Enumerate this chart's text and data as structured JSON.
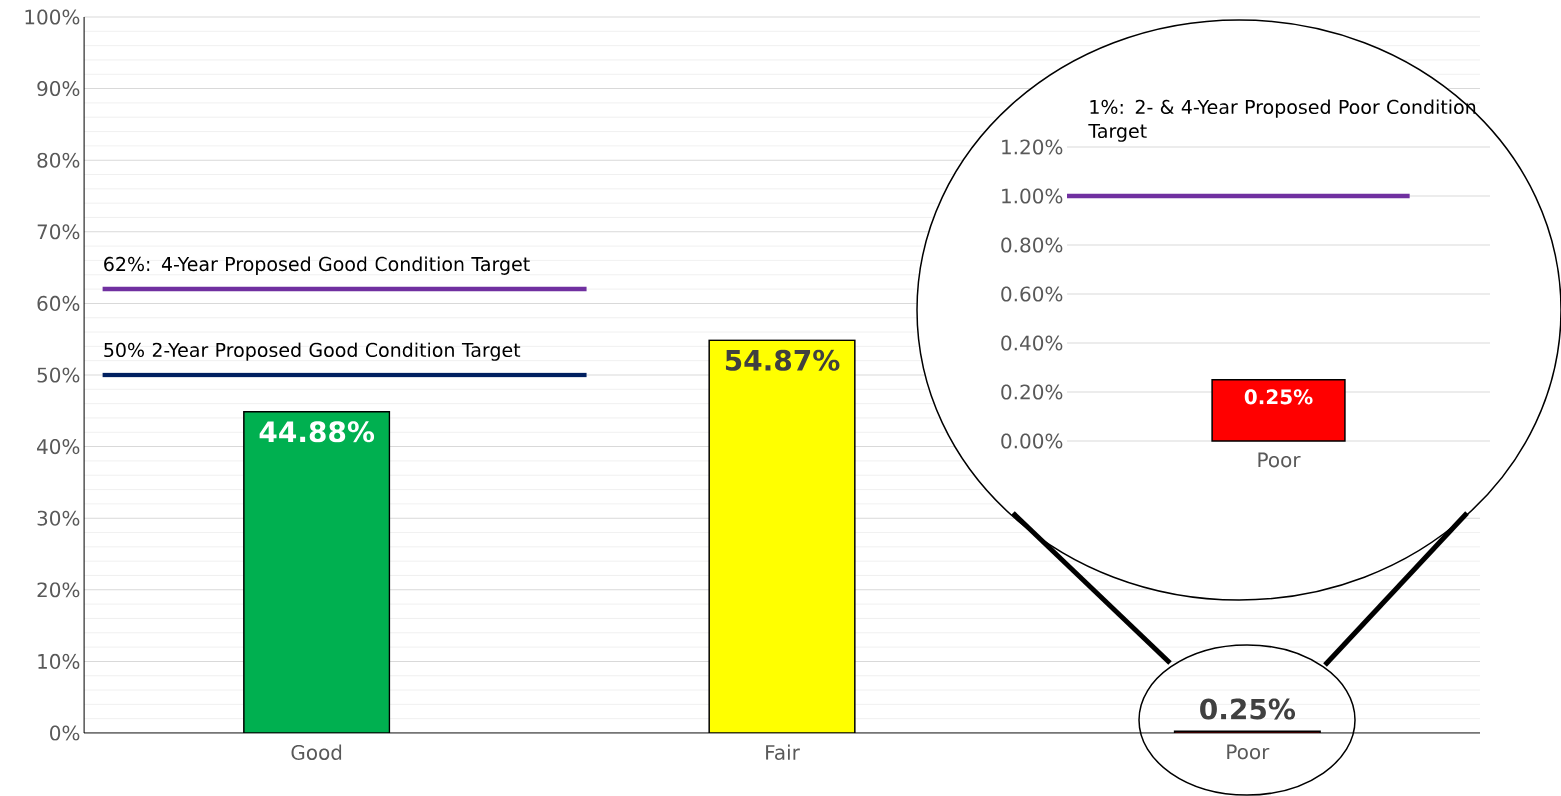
{
  "chart_data": [
    {
      "type": "bar",
      "categories": [
        "Good",
        "Fair",
        "Poor"
      ],
      "values": [
        44.88,
        54.87,
        0.25
      ],
      "colors": [
        "#00b050",
        "#ffff00",
        "#ff0000"
      ],
      "value_labels": [
        "44.88%",
        "54.87%",
        "0.25%"
      ],
      "ylim": [
        0,
        100
      ],
      "yticks": [
        {
          "value": 0,
          "label": "0%"
        },
        {
          "value": 10,
          "label": "10%"
        },
        {
          "value": 20,
          "label": "20%"
        },
        {
          "value": 30,
          "label": "30%"
        },
        {
          "value": 40,
          "label": "40%"
        },
        {
          "value": 50,
          "label": "50%"
        },
        {
          "value": 60,
          "label": "60%"
        },
        {
          "value": 70,
          "label": "70%"
        },
        {
          "value": 80,
          "label": "80%"
        },
        {
          "value": 90,
          "label": "90%"
        },
        {
          "value": 100,
          "label": "100%"
        }
      ],
      "grid": "y",
      "ref_lines": [
        {
          "axis": "y",
          "value": 62,
          "label": "62%: 4-Year Proposed Good Condition Target",
          "color": "#7030a0"
        },
        {
          "axis": "y",
          "value": 50,
          "label": "50% 2-Year Proposed Good Condition Target",
          "color": "#002060"
        }
      ]
    },
    {
      "type": "bar",
      "categories": [
        "Poor"
      ],
      "values": [
        0.25
      ],
      "colors": [
        "#ff0000"
      ],
      "value_labels": [
        "0.25%"
      ],
      "ylim": [
        0,
        1.2
      ],
      "yticks": [
        {
          "value": 0,
          "label": "0.00%"
        },
        {
          "value": 0.2,
          "label": "0.20%"
        },
        {
          "value": 0.4,
          "label": "0.40%"
        },
        {
          "value": 0.6,
          "label": "0.60%"
        },
        {
          "value": 0.8,
          "label": "0.80%"
        },
        {
          "value": 1.0,
          "label": "1.00%"
        },
        {
          "value": 1.2,
          "label": "1.20%"
        }
      ],
      "grid": "y",
      "ref_lines": [
        {
          "axis": "y",
          "value": 1.0,
          "label": "1%: 2- & 4-Year Proposed Poor Condition Target",
          "color": "#7030a0"
        }
      ]
    }
  ]
}
